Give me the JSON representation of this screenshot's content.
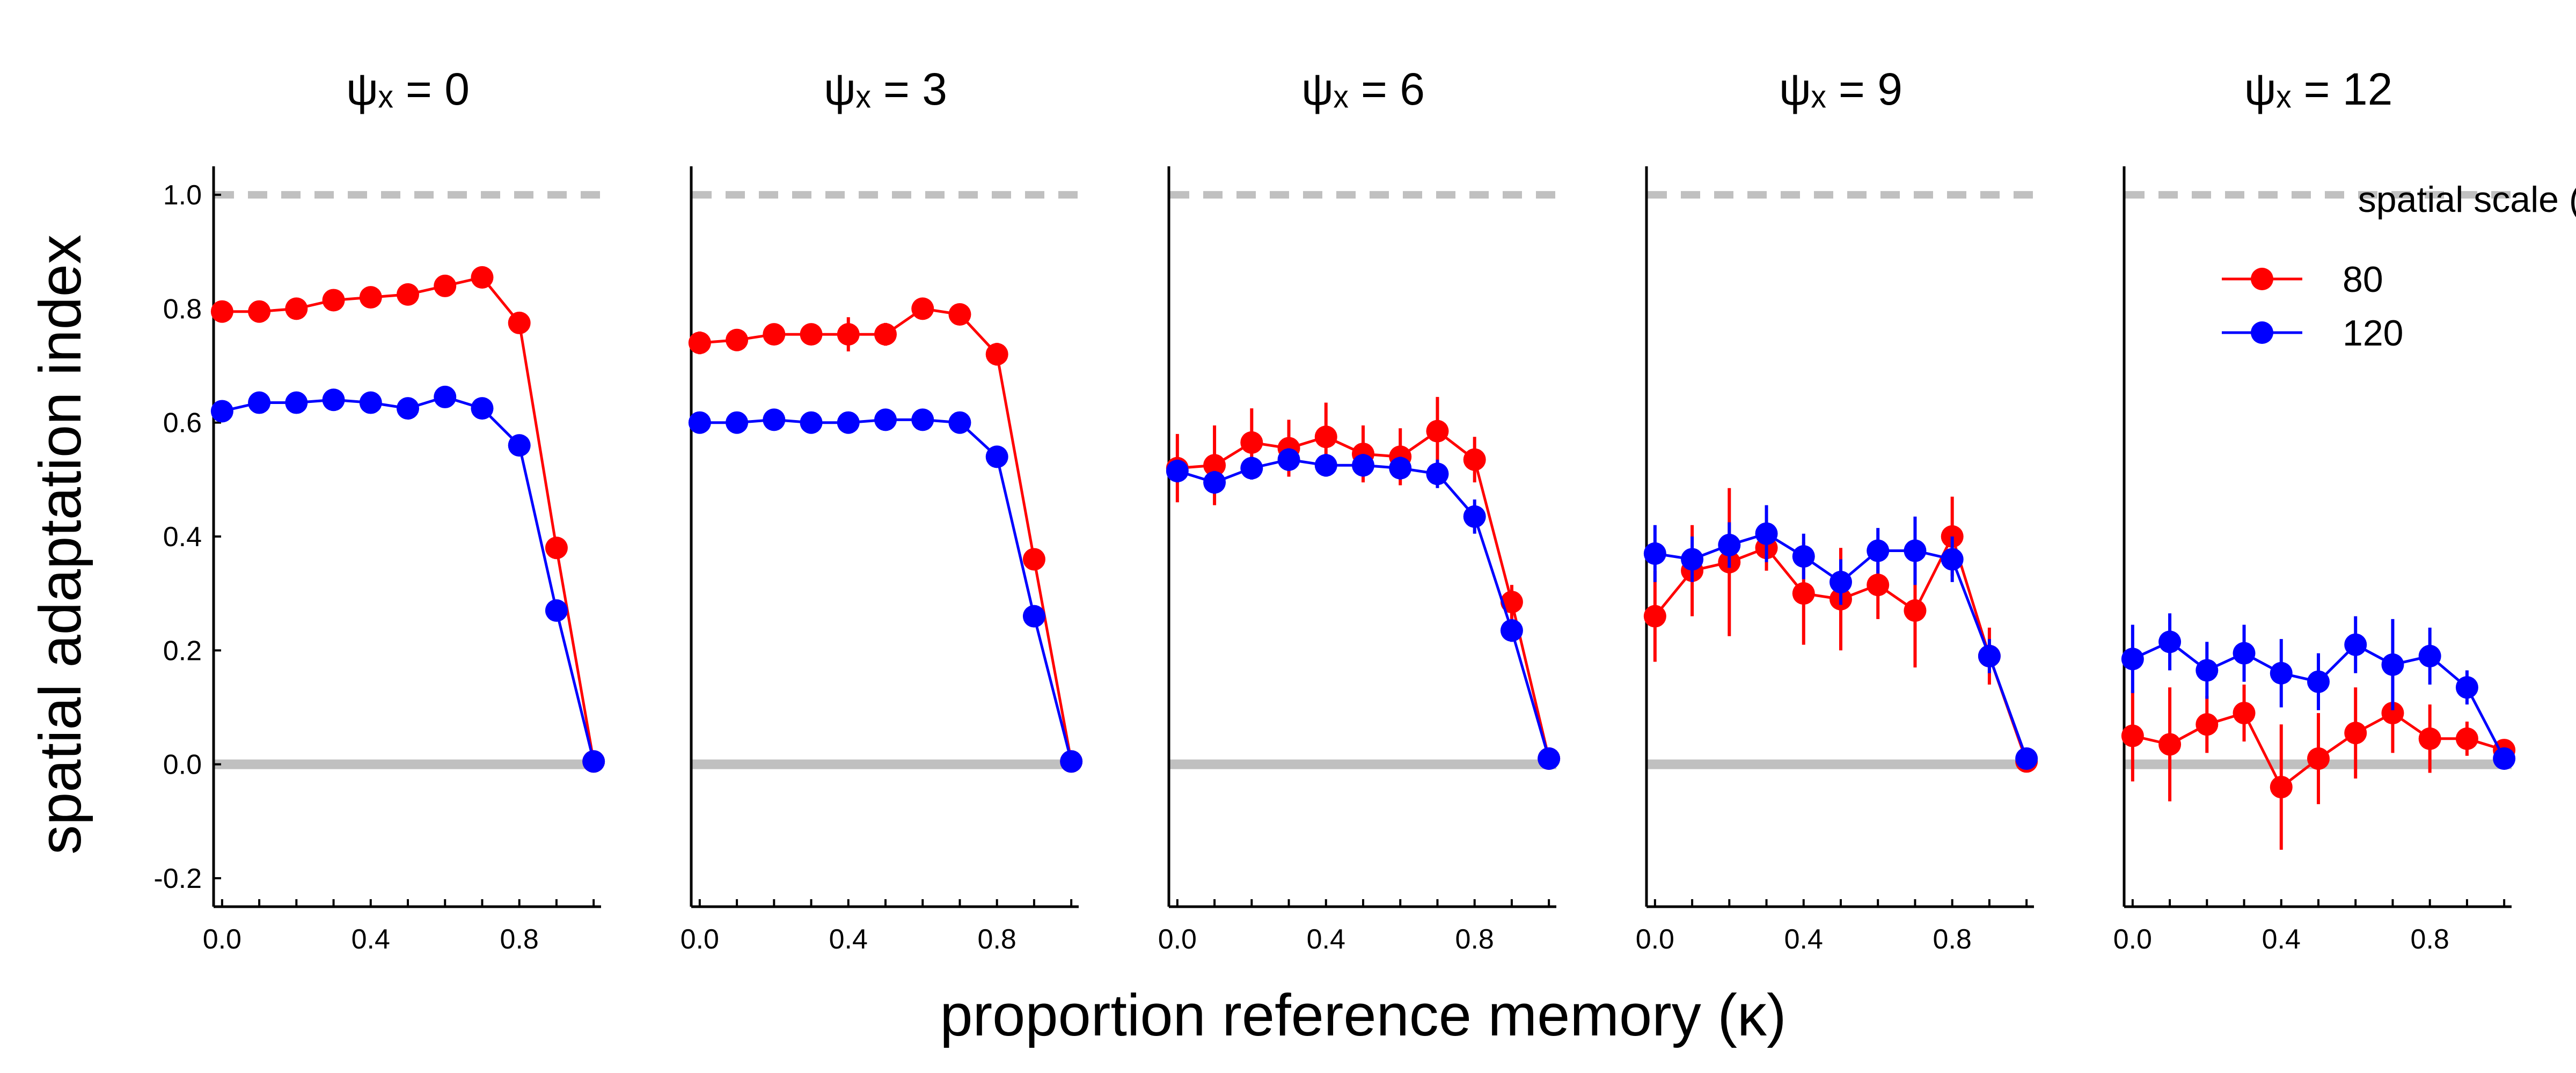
{
  "chart_data": {
    "type": "line",
    "xlabel": "proportion reference memory (κ)",
    "ylabel": "spatial adaptation index",
    "xlim": [
      -0.02,
      1.02
    ],
    "ylim": [
      -0.25,
      1.05
    ],
    "x_ticks": [
      0.0,
      0.4,
      0.8
    ],
    "x_tick_labels": [
      "0.0",
      "0.4",
      "0.8"
    ],
    "y_ticks": [
      -0.2,
      0.0,
      0.2,
      0.4,
      0.6,
      0.8,
      1.0
    ],
    "y_tick_labels": [
      "-0.2",
      "0.0",
      "0.2",
      "0.4",
      "0.6",
      "0.8",
      "1.0"
    ],
    "reference_lines": [
      {
        "y": 1.0,
        "style": "dashed",
        "color": "#c0c0c0"
      },
      {
        "y": 0.0,
        "style": "solid",
        "color": "#c0c0c0"
      }
    ],
    "legend": {
      "title": "spatial scale (λ)",
      "placement": "top-right of last panel",
      "entries": [
        {
          "label": "80",
          "color": "#ff0000"
        },
        {
          "label": "120",
          "color": "#0000ff"
        }
      ]
    },
    "panels": [
      {
        "title": "ψₓ = 0",
        "x": [
          0.0,
          0.1,
          0.2,
          0.3,
          0.4,
          0.5,
          0.6,
          0.7,
          0.8,
          0.9,
          1.0
        ],
        "series": [
          {
            "name": "80",
            "color": "#ff0000",
            "values": [
              0.795,
              0.795,
              0.8,
              0.815,
              0.82,
              0.825,
              0.84,
              0.855,
              0.775,
              0.38,
              0.005
            ],
            "errors": [
              0.012,
              0.01,
              0.01,
              0.012,
              0.012,
              0.012,
              0.012,
              0.015,
              0.012,
              0.012,
              0.005
            ]
          },
          {
            "name": "120",
            "color": "#0000ff",
            "values": [
              0.62,
              0.635,
              0.635,
              0.64,
              0.635,
              0.625,
              0.645,
              0.625,
              0.56,
              0.27,
              0.005
            ],
            "errors": [
              0.012,
              0.012,
              0.012,
              0.012,
              0.012,
              0.012,
              0.015,
              0.012,
              0.012,
              0.012,
              0.005
            ]
          }
        ]
      },
      {
        "title": "ψₓ = 3",
        "x": [
          0.0,
          0.1,
          0.2,
          0.3,
          0.4,
          0.5,
          0.6,
          0.7,
          0.8,
          0.9,
          1.0
        ],
        "series": [
          {
            "name": "80",
            "color": "#ff0000",
            "values": [
              0.74,
              0.745,
              0.755,
              0.755,
              0.755,
              0.755,
              0.8,
              0.79,
              0.72,
              0.36,
              0.005
            ],
            "errors": [
              0.02,
              0.015,
              0.015,
              0.015,
              0.03,
              0.02,
              0.015,
              0.015,
              0.02,
              0.015,
              0.005
            ]
          },
          {
            "name": "120",
            "color": "#0000ff",
            "values": [
              0.6,
              0.6,
              0.605,
              0.6,
              0.6,
              0.605,
              0.605,
              0.6,
              0.54,
              0.26,
              0.005
            ],
            "errors": [
              0.01,
              0.01,
              0.01,
              0.01,
              0.01,
              0.01,
              0.01,
              0.01,
              0.01,
              0.012,
              0.005
            ]
          }
        ]
      },
      {
        "title": "ψₓ = 6",
        "x": [
          0.0,
          0.1,
          0.2,
          0.3,
          0.4,
          0.5,
          0.6,
          0.7,
          0.8,
          0.9,
          1.0
        ],
        "series": [
          {
            "name": "80",
            "color": "#ff0000",
            "values": [
              0.52,
              0.525,
              0.565,
              0.555,
              0.575,
              0.545,
              0.54,
              0.585,
              0.535,
              0.285,
              0.01
            ],
            "errors": [
              0.06,
              0.07,
              0.06,
              0.05,
              0.06,
              0.05,
              0.05,
              0.06,
              0.04,
              0.03,
              0.005
            ]
          },
          {
            "name": "120",
            "color": "#0000ff",
            "values": [
              0.515,
              0.495,
              0.52,
              0.535,
              0.525,
              0.525,
              0.52,
              0.51,
              0.435,
              0.235,
              0.01
            ],
            "errors": [
              0.02,
              0.02,
              0.02,
              0.02,
              0.02,
              0.02,
              0.02,
              0.025,
              0.03,
              0.02,
              0.005
            ]
          }
        ]
      },
      {
        "title": "ψₓ = 9",
        "x": [
          0.0,
          0.1,
          0.2,
          0.3,
          0.4,
          0.5,
          0.6,
          0.7,
          0.8,
          0.9,
          1.0
        ],
        "series": [
          {
            "name": "80",
            "color": "#ff0000",
            "values": [
              0.26,
              0.34,
              0.355,
              0.38,
              0.3,
              0.29,
              0.315,
              0.27,
              0.4,
              0.19,
              0.005
            ],
            "errors": [
              0.08,
              0.08,
              0.13,
              0.04,
              0.09,
              0.09,
              0.06,
              0.1,
              0.07,
              0.05,
              0.005
            ]
          },
          {
            "name": "120",
            "color": "#0000ff",
            "values": [
              0.37,
              0.36,
              0.385,
              0.405,
              0.365,
              0.32,
              0.375,
              0.375,
              0.36,
              0.19,
              0.01
            ],
            "errors": [
              0.05,
              0.04,
              0.04,
              0.05,
              0.04,
              0.04,
              0.04,
              0.06,
              0.04,
              0.03,
              0.005
            ]
          }
        ]
      },
      {
        "title": "ψₓ = 12",
        "x": [
          0.0,
          0.1,
          0.2,
          0.3,
          0.4,
          0.5,
          0.6,
          0.7,
          0.8,
          0.9,
          1.0
        ],
        "series": [
          {
            "name": "80",
            "color": "#ff0000",
            "values": [
              0.05,
              0.035,
              0.07,
              0.09,
              -0.04,
              0.01,
              0.055,
              0.09,
              0.045,
              0.045,
              0.025
            ],
            "errors": [
              0.08,
              0.1,
              0.05,
              0.05,
              0.11,
              0.08,
              0.08,
              0.07,
              0.06,
              0.03,
              0.01
            ]
          },
          {
            "name": "120",
            "color": "#0000ff",
            "values": [
              0.185,
              0.215,
              0.165,
              0.195,
              0.16,
              0.145,
              0.21,
              0.175,
              0.19,
              0.135,
              0.01
            ],
            "errors": [
              0.06,
              0.05,
              0.05,
              0.05,
              0.06,
              0.05,
              0.05,
              0.08,
              0.05,
              0.03,
              0.005
            ]
          }
        ]
      }
    ]
  }
}
